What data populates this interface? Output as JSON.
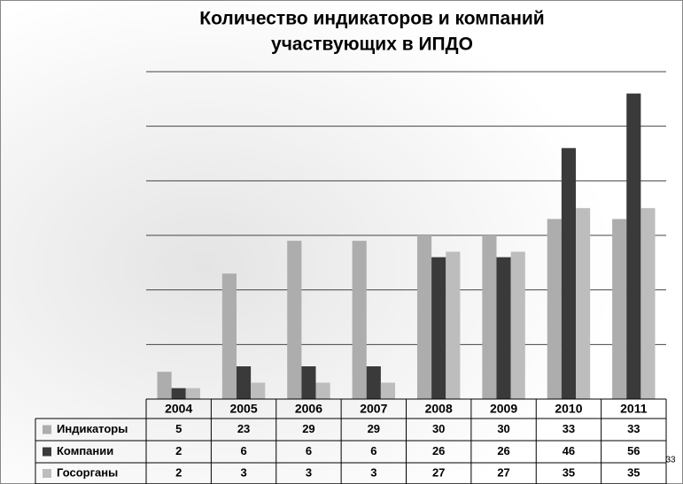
{
  "chart_data": {
    "type": "bar",
    "title": [
      "Количество  индикаторов и компаний",
      "участвующих в  ИПДО"
    ],
    "categories": [
      "2004",
      "2005",
      "2006",
      "2007",
      "2008",
      "2009",
      "2010",
      "2011"
    ],
    "series": [
      {
        "name": "Индикаторы",
        "color": "#adadad",
        "values": [
          5,
          23,
          29,
          29,
          30,
          30,
          33,
          33
        ]
      },
      {
        "name": "Компании",
        "color": "#3a3a3a",
        "values": [
          2,
          6,
          6,
          6,
          26,
          26,
          46,
          56
        ]
      },
      {
        "name": "Госорганы",
        "color": "#bdbdbd",
        "values": [
          2,
          3,
          3,
          3,
          27,
          27,
          35,
          35
        ]
      }
    ],
    "ylim": [
      0,
      60
    ],
    "yticks": [
      0,
      10,
      20,
      30,
      40,
      50,
      60
    ],
    "grid": true,
    "slide_number": "33"
  }
}
